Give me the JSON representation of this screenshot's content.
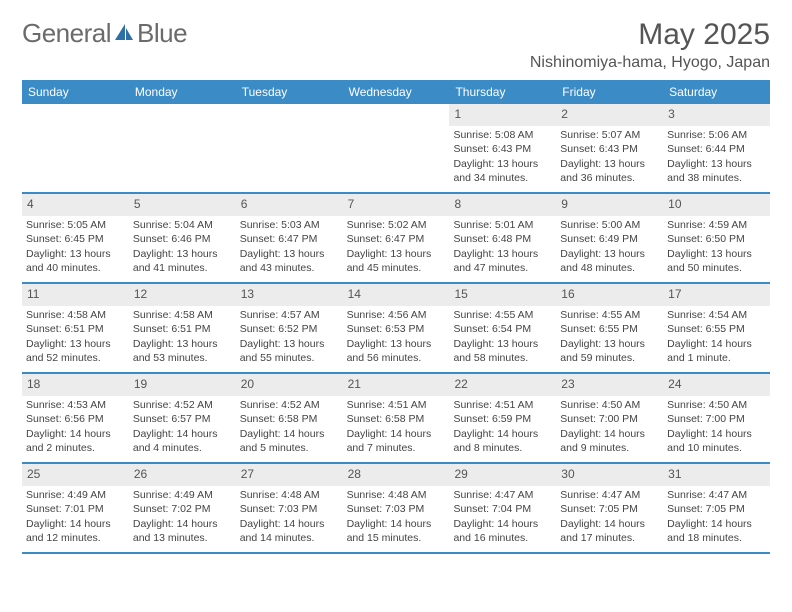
{
  "logo": {
    "text1": "General",
    "text2": "Blue"
  },
  "title": "May 2025",
  "location": "Nishinomiya-hama, Hyogo, Japan",
  "colors": {
    "header_bg": "#3b8bc7",
    "header_text": "#ffffff",
    "daynum_bg": "#ececec",
    "border": "#3b8bc7",
    "logo_gray": "#6b6b6b",
    "logo_blue": "#2f6fa8"
  },
  "weekdays": [
    "Sunday",
    "Monday",
    "Tuesday",
    "Wednesday",
    "Thursday",
    "Friday",
    "Saturday"
  ],
  "weeks": [
    [
      {
        "n": "",
        "sunrise": "",
        "sunset": "",
        "daylight": ""
      },
      {
        "n": "",
        "sunrise": "",
        "sunset": "",
        "daylight": ""
      },
      {
        "n": "",
        "sunrise": "",
        "sunset": "",
        "daylight": ""
      },
      {
        "n": "",
        "sunrise": "",
        "sunset": "",
        "daylight": ""
      },
      {
        "n": "1",
        "sunrise": "Sunrise: 5:08 AM",
        "sunset": "Sunset: 6:43 PM",
        "daylight": "Daylight: 13 hours and 34 minutes."
      },
      {
        "n": "2",
        "sunrise": "Sunrise: 5:07 AM",
        "sunset": "Sunset: 6:43 PM",
        "daylight": "Daylight: 13 hours and 36 minutes."
      },
      {
        "n": "3",
        "sunrise": "Sunrise: 5:06 AM",
        "sunset": "Sunset: 6:44 PM",
        "daylight": "Daylight: 13 hours and 38 minutes."
      }
    ],
    [
      {
        "n": "4",
        "sunrise": "Sunrise: 5:05 AM",
        "sunset": "Sunset: 6:45 PM",
        "daylight": "Daylight: 13 hours and 40 minutes."
      },
      {
        "n": "5",
        "sunrise": "Sunrise: 5:04 AM",
        "sunset": "Sunset: 6:46 PM",
        "daylight": "Daylight: 13 hours and 41 minutes."
      },
      {
        "n": "6",
        "sunrise": "Sunrise: 5:03 AM",
        "sunset": "Sunset: 6:47 PM",
        "daylight": "Daylight: 13 hours and 43 minutes."
      },
      {
        "n": "7",
        "sunrise": "Sunrise: 5:02 AM",
        "sunset": "Sunset: 6:47 PM",
        "daylight": "Daylight: 13 hours and 45 minutes."
      },
      {
        "n": "8",
        "sunrise": "Sunrise: 5:01 AM",
        "sunset": "Sunset: 6:48 PM",
        "daylight": "Daylight: 13 hours and 47 minutes."
      },
      {
        "n": "9",
        "sunrise": "Sunrise: 5:00 AM",
        "sunset": "Sunset: 6:49 PM",
        "daylight": "Daylight: 13 hours and 48 minutes."
      },
      {
        "n": "10",
        "sunrise": "Sunrise: 4:59 AM",
        "sunset": "Sunset: 6:50 PM",
        "daylight": "Daylight: 13 hours and 50 minutes."
      }
    ],
    [
      {
        "n": "11",
        "sunrise": "Sunrise: 4:58 AM",
        "sunset": "Sunset: 6:51 PM",
        "daylight": "Daylight: 13 hours and 52 minutes."
      },
      {
        "n": "12",
        "sunrise": "Sunrise: 4:58 AM",
        "sunset": "Sunset: 6:51 PM",
        "daylight": "Daylight: 13 hours and 53 minutes."
      },
      {
        "n": "13",
        "sunrise": "Sunrise: 4:57 AM",
        "sunset": "Sunset: 6:52 PM",
        "daylight": "Daylight: 13 hours and 55 minutes."
      },
      {
        "n": "14",
        "sunrise": "Sunrise: 4:56 AM",
        "sunset": "Sunset: 6:53 PM",
        "daylight": "Daylight: 13 hours and 56 minutes."
      },
      {
        "n": "15",
        "sunrise": "Sunrise: 4:55 AM",
        "sunset": "Sunset: 6:54 PM",
        "daylight": "Daylight: 13 hours and 58 minutes."
      },
      {
        "n": "16",
        "sunrise": "Sunrise: 4:55 AM",
        "sunset": "Sunset: 6:55 PM",
        "daylight": "Daylight: 13 hours and 59 minutes."
      },
      {
        "n": "17",
        "sunrise": "Sunrise: 4:54 AM",
        "sunset": "Sunset: 6:55 PM",
        "daylight": "Daylight: 14 hours and 1 minute."
      }
    ],
    [
      {
        "n": "18",
        "sunrise": "Sunrise: 4:53 AM",
        "sunset": "Sunset: 6:56 PM",
        "daylight": "Daylight: 14 hours and 2 minutes."
      },
      {
        "n": "19",
        "sunrise": "Sunrise: 4:52 AM",
        "sunset": "Sunset: 6:57 PM",
        "daylight": "Daylight: 14 hours and 4 minutes."
      },
      {
        "n": "20",
        "sunrise": "Sunrise: 4:52 AM",
        "sunset": "Sunset: 6:58 PM",
        "daylight": "Daylight: 14 hours and 5 minutes."
      },
      {
        "n": "21",
        "sunrise": "Sunrise: 4:51 AM",
        "sunset": "Sunset: 6:58 PM",
        "daylight": "Daylight: 14 hours and 7 minutes."
      },
      {
        "n": "22",
        "sunrise": "Sunrise: 4:51 AM",
        "sunset": "Sunset: 6:59 PM",
        "daylight": "Daylight: 14 hours and 8 minutes."
      },
      {
        "n": "23",
        "sunrise": "Sunrise: 4:50 AM",
        "sunset": "Sunset: 7:00 PM",
        "daylight": "Daylight: 14 hours and 9 minutes."
      },
      {
        "n": "24",
        "sunrise": "Sunrise: 4:50 AM",
        "sunset": "Sunset: 7:00 PM",
        "daylight": "Daylight: 14 hours and 10 minutes."
      }
    ],
    [
      {
        "n": "25",
        "sunrise": "Sunrise: 4:49 AM",
        "sunset": "Sunset: 7:01 PM",
        "daylight": "Daylight: 14 hours and 12 minutes."
      },
      {
        "n": "26",
        "sunrise": "Sunrise: 4:49 AM",
        "sunset": "Sunset: 7:02 PM",
        "daylight": "Daylight: 14 hours and 13 minutes."
      },
      {
        "n": "27",
        "sunrise": "Sunrise: 4:48 AM",
        "sunset": "Sunset: 7:03 PM",
        "daylight": "Daylight: 14 hours and 14 minutes."
      },
      {
        "n": "28",
        "sunrise": "Sunrise: 4:48 AM",
        "sunset": "Sunset: 7:03 PM",
        "daylight": "Daylight: 14 hours and 15 minutes."
      },
      {
        "n": "29",
        "sunrise": "Sunrise: 4:47 AM",
        "sunset": "Sunset: 7:04 PM",
        "daylight": "Daylight: 14 hours and 16 minutes."
      },
      {
        "n": "30",
        "sunrise": "Sunrise: 4:47 AM",
        "sunset": "Sunset: 7:05 PM",
        "daylight": "Daylight: 14 hours and 17 minutes."
      },
      {
        "n": "31",
        "sunrise": "Sunrise: 4:47 AM",
        "sunset": "Sunset: 7:05 PM",
        "daylight": "Daylight: 14 hours and 18 minutes."
      }
    ]
  ]
}
